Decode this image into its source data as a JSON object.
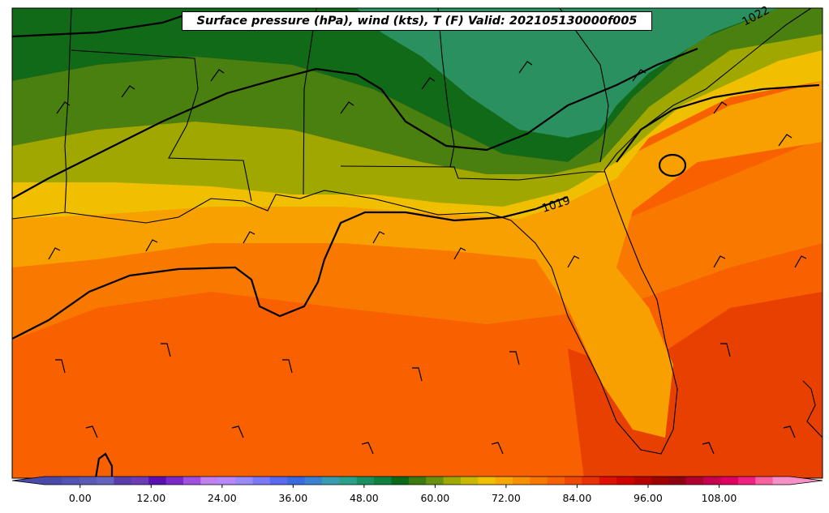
{
  "title": "Surface pressure (hPa), wind (kts), T (F) Valid: 202105130000f005",
  "isobar_labels": [
    "1022",
    "1019"
  ],
  "colorbar": {
    "vmin": -6,
    "vmax": 120,
    "tick_values": [
      0,
      12,
      24,
      36,
      48,
      60,
      72,
      84,
      96,
      108
    ],
    "tick_labels": [
      "0.00",
      "12.00",
      "24.00",
      "36.00",
      "48.00",
      "60.00",
      "72.00",
      "84.00",
      "96.00",
      "108.00"
    ],
    "colors": [
      "#4a4aa8",
      "#5353b4",
      "#5a5ab8",
      "#6464c0",
      "#5a3caa",
      "#6a3cb8",
      "#5a10b0",
      "#7a28c8",
      "#a050e0",
      "#c080f0",
      "#b888f8",
      "#9a8af8",
      "#7a7af8",
      "#5a6af0",
      "#3a6ae0",
      "#3a82d0",
      "#3a9ab0",
      "#2aa088",
      "#1a9060",
      "#108040",
      "#0a6a1a",
      "#3a7a10",
      "#6a9010",
      "#a0a800",
      "#c8b800",
      "#f0c000",
      "#f8a800",
      "#f89000",
      "#f87800",
      "#f86000",
      "#f04800",
      "#e83000",
      "#e01000",
      "#d00000",
      "#b80000",
      "#a00000",
      "#900010",
      "#b00030",
      "#c80050",
      "#e00060",
      "#f02080",
      "#f860a0",
      "#f890c8"
    ]
  },
  "chart_data": {
    "type": "heatmap",
    "title": "Surface pressure (hPa), wind (kts), T (F) Valid: 202105130000f005",
    "colorbar_range": [
      -6,
      120
    ],
    "colorbar_ticks": [
      0,
      12,
      24,
      36,
      48,
      60,
      72,
      84,
      96,
      108
    ],
    "contour_labels": [
      1022,
      1019
    ]
  }
}
